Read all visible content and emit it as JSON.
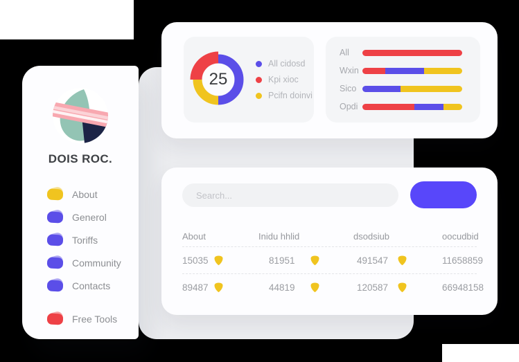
{
  "palette": {
    "red": "#ee4146",
    "violet": "#5b4ee8",
    "yellow": "#f0c41f",
    "button_blue": "#5847fa",
    "navy": "#1c2446",
    "teal": "#93c4b4",
    "pink": "#f8a8b0",
    "pink_light": "#fbd3d7",
    "canvas_gray": "#ecedf0",
    "panel_gray": "#f4f5f7"
  },
  "sidebar": {
    "brand": "DOIS ROC.",
    "items": [
      {
        "label": "About",
        "color": "yellow"
      },
      {
        "label": "Generol",
        "color": "violet"
      },
      {
        "label": "Toriffs",
        "color": "violet"
      },
      {
        "label": "Community",
        "color": "violet"
      },
      {
        "label": "Contacts",
        "color": "violet"
      }
    ],
    "footer_item": {
      "label": "Free Tools",
      "color": "red"
    }
  },
  "stats_card": {
    "donut": {
      "center_value": "25",
      "segments": [
        {
          "name": "All cidosd",
          "color": "violet",
          "pct": 50
        },
        {
          "name": "Kpi xioc",
          "color": "red",
          "pct": 25
        },
        {
          "name": "Pcifn doinvi",
          "color": "yellow",
          "pct": 25
        }
      ]
    },
    "bars": {
      "rows": [
        {
          "label": "All",
          "segments": [
            {
              "color": "red",
              "pct": 100
            }
          ]
        },
        {
          "label": "Wxin",
          "segments": [
            {
              "color": "red",
              "pct": 23
            },
            {
              "color": "violet",
              "pct": 39
            },
            {
              "color": "yellow",
              "pct": 38
            }
          ]
        },
        {
          "label": "Sico",
          "segments": [
            {
              "color": "violet",
              "pct": 38
            },
            {
              "color": "yellow",
              "pct": 62
            }
          ]
        },
        {
          "label": "Opdi",
          "segments": [
            {
              "color": "red",
              "pct": 52
            },
            {
              "color": "violet",
              "pct": 29
            },
            {
              "color": "yellow",
              "pct": 19
            }
          ]
        }
      ]
    }
  },
  "table_card": {
    "search_placeholder": "Search...",
    "columns": [
      "About",
      "Inidu hhlid",
      "dsodsiub",
      "oocudbid"
    ],
    "rows": [
      {
        "cells": [
          "15035",
          "81951",
          "491547",
          "11658859"
        ]
      },
      {
        "cells": [
          "89487",
          "44819",
          "120587",
          "66948158"
        ]
      }
    ]
  }
}
